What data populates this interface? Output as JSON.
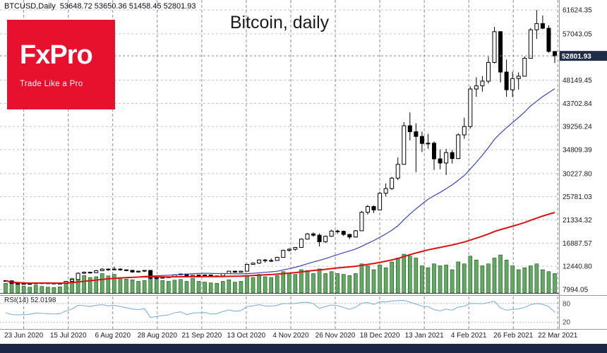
{
  "quote_bar": {
    "text": "BTCUSD,Daily  53648.72 53650.36 51458.45 52801.93"
  },
  "logo": {
    "brand": "FxPro",
    "tagline": "Trade Like a Pro"
  },
  "colors": {
    "brand_red": "#e8112d",
    "footer_bar": "#1c2747",
    "grid_h": "#c4c4c4",
    "grid_v": "#8c8c8c",
    "volume_fill": "#63a963",
    "volume_stroke": "#145214",
    "rsi_line": "#7fb2d8",
    "price_tag_bg": "#1f2d49",
    "candle_up_fill": "#ffffff",
    "candle_down_fill": "#000000",
    "candle_stroke": "#000000"
  },
  "chart_data": {
    "type": "candlestick",
    "title": "Bitcoin, daily",
    "symbol": "BTCUSD",
    "timeframe": "Daily",
    "ohlc_readout": {
      "open": 53648.72,
      "high": 53650.36,
      "low": 51458.45,
      "close": 52801.93
    },
    "current_price": 52801.93,
    "y_axis": {
      "min": 7994.05,
      "max": 61624.35,
      "ticks": [
        61624.35,
        57043.05,
        48149.45,
        43702.84,
        39256.24,
        34809.39,
        30227.8,
        25781.03,
        21334.32,
        16887.57,
        12440.8,
        7994.05
      ]
    },
    "x_axis": {
      "tick_labels": [
        "23 Jun 2020",
        "15 Jul 2020",
        "6 Aug 2020",
        "28 Aug 2020",
        "21 Sep 2020",
        "13 Oct 2020",
        "4 Nov 2020",
        "26 Nov 2020",
        "18 Dec 2020",
        "13 Jan 2021",
        "4 Feb 2021",
        "26 Feb 2021",
        "22 Mar 2021"
      ]
    },
    "candles": [
      [
        9700,
        9750,
        9550,
        9650
      ],
      [
        9650,
        9680,
        9050,
        9150
      ],
      [
        9150,
        9250,
        9050,
        9120
      ],
      [
        9120,
        9200,
        9000,
        9100
      ],
      [
        9100,
        9180,
        9020,
        9080
      ],
      [
        9080,
        9320,
        9060,
        9250
      ],
      [
        9250,
        9330,
        9150,
        9230
      ],
      [
        9230,
        9300,
        9130,
        9200
      ],
      [
        9200,
        9260,
        9080,
        9150
      ],
      [
        9150,
        9220,
        9100,
        9160
      ],
      [
        9160,
        9620,
        9140,
        9550
      ],
      [
        9550,
        9980,
        9500,
        9900
      ],
      [
        9900,
        11250,
        9880,
        11100
      ],
      [
        11100,
        11440,
        10950,
        11300
      ],
      [
        11300,
        11400,
        11000,
        11200
      ],
      [
        11200,
        11750,
        11150,
        11600
      ],
      [
        11600,
        12060,
        11500,
        11900
      ],
      [
        11900,
        12030,
        11550,
        11780
      ],
      [
        11780,
        12380,
        11700,
        11900
      ],
      [
        11900,
        12050,
        11600,
        11750
      ],
      [
        11750,
        11850,
        11500,
        11650
      ],
      [
        11650,
        11760,
        11200,
        11350
      ],
      [
        11350,
        11590,
        11250,
        11500
      ],
      [
        11500,
        11720,
        11350,
        11650
      ],
      [
        11650,
        11700,
        9950,
        10150
      ],
      [
        10150,
        10370,
        9900,
        10250
      ],
      [
        10250,
        10420,
        10080,
        10300
      ],
      [
        10300,
        10490,
        10200,
        10400
      ],
      [
        10400,
        10890,
        10350,
        10800
      ],
      [
        10800,
        11080,
        10700,
        10950
      ],
      [
        10950,
        11000,
        10350,
        10450
      ],
      [
        10450,
        10790,
        10400,
        10700
      ],
      [
        10700,
        10840,
        10600,
        10750
      ],
      [
        10750,
        10850,
        10640,
        10780
      ],
      [
        10780,
        10800,
        10400,
        10550
      ],
      [
        10550,
        10690,
        10450,
        10600
      ],
      [
        10600,
        11110,
        10560,
        11050
      ],
      [
        11050,
        11560,
        11000,
        11500
      ],
      [
        11500,
        11560,
        11200,
        11300
      ],
      [
        11300,
        11580,
        11250,
        11500
      ],
      [
        11500,
        12930,
        11450,
        12800
      ],
      [
        12800,
        13180,
        12750,
        13050
      ],
      [
        13050,
        13790,
        12900,
        13650
      ],
      [
        13650,
        13830,
        13150,
        13550
      ],
      [
        13550,
        13950,
        13250,
        13550
      ],
      [
        13550,
        14250,
        13500,
        14150
      ],
      [
        14150,
        15650,
        14100,
        15500
      ],
      [
        15500,
        15920,
        15250,
        15700
      ],
      [
        15700,
        16150,
        15450,
        16050
      ],
      [
        16050,
        17800,
        16000,
        17650
      ],
      [
        17650,
        18800,
        17600,
        18650
      ],
      [
        18650,
        18950,
        18100,
        18400
      ],
      [
        18400,
        18750,
        16250,
        17150
      ],
      [
        17150,
        18350,
        16900,
        18200
      ],
      [
        18200,
        19450,
        18100,
        19200
      ],
      [
        19200,
        19470,
        18650,
        19150
      ],
      [
        19150,
        19300,
        18250,
        18550
      ],
      [
        18550,
        18660,
        17650,
        18050
      ],
      [
        18050,
        19390,
        17950,
        19250
      ],
      [
        19250,
        23050,
        19200,
        22800
      ],
      [
        22800,
        24200,
        22350,
        23900
      ],
      [
        23900,
        24100,
        22650,
        23250
      ],
      [
        23250,
        26750,
        23150,
        26450
      ],
      [
        26450,
        28350,
        25850,
        27350
      ],
      [
        27350,
        29600,
        27100,
        29350
      ],
      [
        29350,
        33300,
        28950,
        32000
      ],
      [
        32000,
        40100,
        31950,
        39400
      ],
      [
        39400,
        41950,
        36600,
        38250
      ],
      [
        38250,
        39850,
        30500,
        37350
      ],
      [
        37350,
        38250,
        34350,
        36000
      ],
      [
        36000,
        37850,
        35000,
        36050
      ],
      [
        36050,
        36400,
        30900,
        33050
      ],
      [
        33050,
        34850,
        31050,
        32250
      ],
      [
        32250,
        34950,
        29950,
        34250
      ],
      [
        34250,
        34750,
        32150,
        33100
      ],
      [
        33100,
        37950,
        33000,
        37650
      ],
      [
        37650,
        40950,
        36900,
        39250
      ],
      [
        39250,
        46950,
        38850,
        46450
      ],
      [
        46450,
        48700,
        44950,
        47050
      ],
      [
        47050,
        48950,
        45950,
        47950
      ],
      [
        47950,
        52650,
        47500,
        51550
      ],
      [
        51550,
        58350,
        51350,
        57450
      ],
      [
        57450,
        57550,
        47700,
        49700
      ],
      [
        49700,
        52100,
        44950,
        46300
      ],
      [
        46300,
        49750,
        44900,
        48450
      ],
      [
        48450,
        49650,
        46350,
        48900
      ],
      [
        48900,
        52700,
        48850,
        52350
      ],
      [
        52350,
        58150,
        52300,
        57800
      ],
      [
        57800,
        61600,
        56050,
        59000
      ],
      [
        59000,
        60550,
        57900,
        58100
      ],
      [
        58100,
        58650,
        53400,
        53650
      ],
      [
        53648.72,
        53650.36,
        51458.45,
        52801.93
      ]
    ],
    "volume_rel": [
      0.25,
      0.3,
      0.22,
      0.18,
      0.15,
      0.2,
      0.17,
      0.15,
      0.14,
      0.16,
      0.3,
      0.38,
      0.5,
      0.45,
      0.4,
      0.42,
      0.5,
      0.44,
      0.48,
      0.4,
      0.36,
      0.34,
      0.3,
      0.32,
      0.55,
      0.4,
      0.32,
      0.3,
      0.33,
      0.35,
      0.3,
      0.38,
      0.3,
      0.28,
      0.26,
      0.25,
      0.3,
      0.34,
      0.28,
      0.3,
      0.45,
      0.4,
      0.48,
      0.42,
      0.4,
      0.45,
      0.55,
      0.5,
      0.48,
      0.6,
      0.58,
      0.5,
      0.62,
      0.5,
      0.55,
      0.5,
      0.48,
      0.45,
      0.5,
      0.75,
      0.7,
      0.6,
      0.72,
      0.65,
      0.8,
      0.9,
      1.0,
      0.95,
      0.9,
      0.7,
      0.65,
      0.75,
      0.7,
      0.72,
      0.6,
      0.8,
      0.75,
      0.95,
      0.85,
      0.7,
      0.75,
      0.9,
      0.98,
      0.85,
      0.7,
      0.6,
      0.65,
      0.7,
      0.75,
      0.6,
      0.55,
      0.5
    ],
    "overlays": {
      "ma_fast": {
        "window": 22,
        "color": "#3a44c0"
      },
      "ma_slow": {
        "window": 92,
        "color": "#dd1111"
      }
    },
    "rsi": {
      "label": "RSI(14) 52.0198",
      "period": 14,
      "current": 52.0198,
      "levels": [
        80,
        20
      ],
      "values": [
        50,
        44,
        43,
        44,
        45,
        49,
        48,
        47,
        46,
        47,
        56,
        62,
        74,
        73,
        70,
        74,
        76,
        72,
        74,
        70,
        66,
        62,
        60,
        63,
        35,
        38,
        41,
        43,
        50,
        53,
        44,
        49,
        50,
        51,
        46,
        47,
        54,
        59,
        55,
        57,
        70,
        72,
        76,
        72,
        71,
        74,
        80,
        79,
        80,
        83,
        84,
        79,
        64,
        70,
        75,
        73,
        67,
        61,
        68,
        81,
        83,
        77,
        85,
        85,
        88,
        89,
        90,
        84,
        78,
        71,
        70,
        60,
        56,
        62,
        58,
        68,
        71,
        80,
        80,
        79,
        83,
        87,
        66,
        58,
        61,
        62,
        67,
        76,
        80,
        77,
        70,
        52.0198
      ]
    }
  }
}
